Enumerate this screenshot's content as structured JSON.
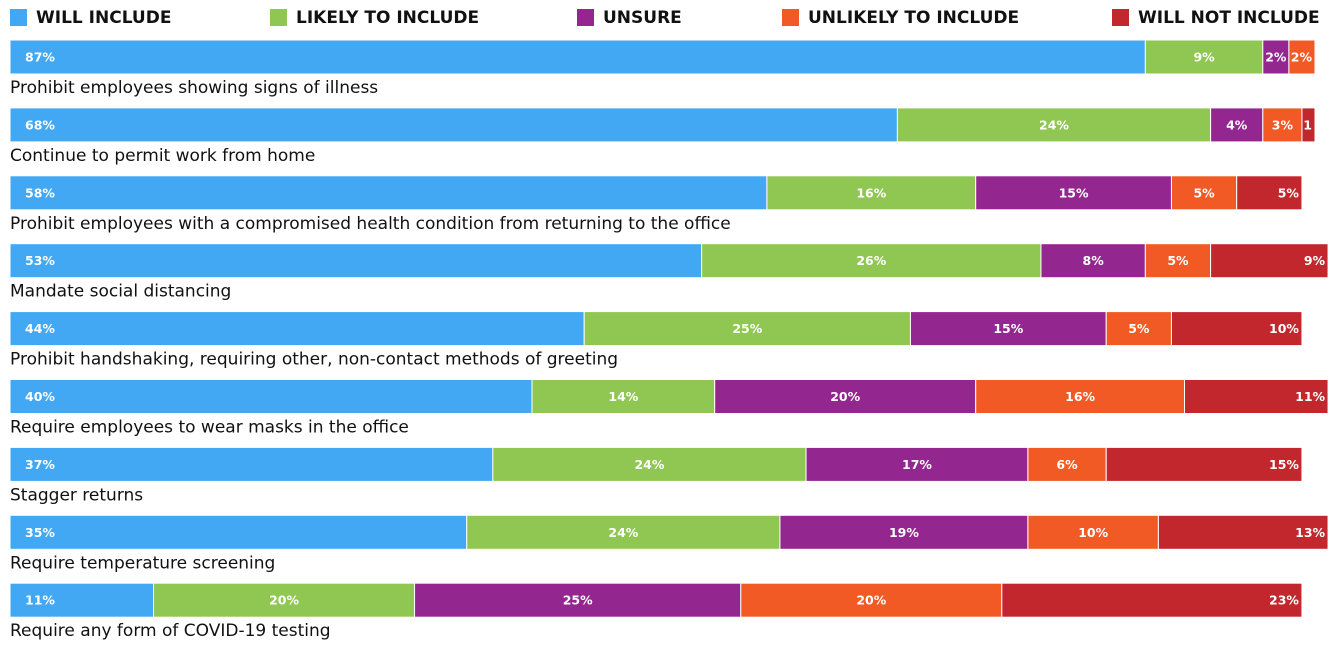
{
  "chart_data": {
    "type": "stacked-bar-horizontal",
    "categories": [
      "Prohibit employees showing signs of illness",
      "Continue to permit work from home",
      "Prohibit employees with a compromised health condition from returning to the office",
      "Mandate social distancing",
      "Prohibit handshaking, requiring other, non-contact methods of greeting",
      "Require employees to wear masks in the office",
      "Stagger returns",
      "Require temperature screening",
      "Require any form of COVID-19 testing"
    ],
    "series": [
      {
        "name": "WILL INCLUDE",
        "color": "#42a8f3",
        "values": [
          87,
          68,
          58,
          53,
          44,
          40,
          37,
          35,
          11
        ],
        "value_labels": [
          "87%",
          "68%",
          "58%",
          "53%",
          "44%",
          "40%",
          "37%",
          "35%",
          "11%"
        ]
      },
      {
        "name": "LIKELY TO INCLUDE",
        "color": "#8fc752",
        "values": [
          9,
          24,
          16,
          26,
          25,
          14,
          24,
          24,
          20
        ],
        "value_labels": [
          "9%",
          "24%",
          "16%",
          "26%",
          "25%",
          "14%",
          "24%",
          "24%",
          "20%"
        ]
      },
      {
        "name": "UNSURE",
        "color": "#93278f",
        "values": [
          2,
          4,
          15,
          8,
          15,
          20,
          17,
          19,
          25
        ],
        "value_labels": [
          "2%",
          "4%",
          "15%",
          "8%",
          "15%",
          "20%",
          "17%",
          "19%",
          "25%"
        ]
      },
      {
        "name": "UNLIKELY TO INCLUDE",
        "color": "#f15a24",
        "values": [
          2,
          3,
          5,
          5,
          5,
          16,
          6,
          10,
          20
        ],
        "value_labels": [
          "2%",
          "3%",
          "5%",
          "5%",
          "5%",
          "16%",
          "6%",
          "10%",
          "20%"
        ]
      },
      {
        "name": "WILL NOT INCLUDE",
        "color": "#c1272d",
        "values": [
          null,
          1,
          5,
          9,
          10,
          11,
          15,
          13,
          23
        ],
        "value_labels": [
          null,
          "1",
          "5%",
          "9%",
          "10%",
          "11%",
          "15%",
          "13%",
          "23%"
        ]
      }
    ]
  }
}
